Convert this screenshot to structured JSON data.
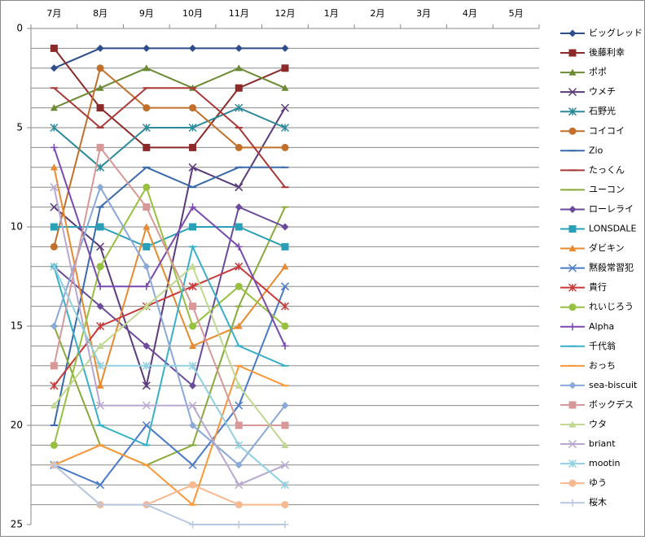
{
  "chart_data": {
    "type": "line",
    "categories": [
      "7月",
      "8月",
      "9月",
      "10月",
      "11月",
      "12月",
      "1月",
      "2月",
      "3月",
      "4月",
      "5月"
    ],
    "ylim": [
      0,
      25
    ],
    "yticks": [
      0,
      5,
      10,
      15,
      20,
      25
    ],
    "y_reversed": true,
    "minor_grid": [
      1,
      2,
      3,
      4,
      5,
      6,
      7,
      8,
      9,
      10,
      11,
      12,
      13,
      14,
      15,
      16,
      17,
      18,
      19,
      20,
      21,
      22,
      23,
      24
    ],
    "legend": "right",
    "series": [
      {
        "name": "ビッグレッド",
        "color": "#2d4e8a",
        "marker": "diamond",
        "values": [
          2,
          1,
          1,
          1,
          1,
          1,
          null,
          null,
          null,
          null,
          null
        ]
      },
      {
        "name": "後藤利幸",
        "color": "#8c2a2a",
        "marker": "square",
        "values": [
          1,
          4,
          6,
          6,
          3,
          2,
          null,
          null,
          null,
          null,
          null
        ]
      },
      {
        "name": "ポポ",
        "color": "#6b8a33",
        "marker": "triangle",
        "values": [
          4,
          3,
          2,
          3,
          2,
          3,
          null,
          null,
          null,
          null,
          null
        ]
      },
      {
        "name": "ウメチ",
        "color": "#5a3a7a",
        "marker": "x",
        "values": [
          9,
          11,
          18,
          7,
          8,
          4,
          null,
          null,
          null,
          null,
          null
        ]
      },
      {
        "name": "石野光",
        "color": "#2a8a9a",
        "marker": "star",
        "values": [
          5,
          7,
          5,
          5,
          4,
          5,
          null,
          null,
          null,
          null,
          null
        ]
      },
      {
        "name": "コイコイ",
        "color": "#c0702a",
        "marker": "circle",
        "values": [
          11,
          2,
          4,
          4,
          6,
          6,
          null,
          null,
          null,
          null,
          null
        ]
      },
      {
        "name": "Zio",
        "color": "#3a6aaa",
        "marker": "dash",
        "values": [
          20,
          9,
          7,
          8,
          7,
          7,
          null,
          null,
          null,
          null,
          null
        ]
      },
      {
        "name": "たっくん",
        "color": "#aa3a3a",
        "marker": "dash",
        "values": [
          3,
          5,
          3,
          3,
          5,
          8,
          null,
          null,
          null,
          null,
          null
        ]
      },
      {
        "name": "ユーコン",
        "color": "#88aa3a",
        "marker": "dash",
        "values": [
          15,
          21,
          22,
          21,
          14,
          9,
          null,
          null,
          null,
          null,
          null
        ]
      },
      {
        "name": "ローレライ",
        "color": "#6a4a9a",
        "marker": "diamond",
        "values": [
          12,
          14,
          16,
          18,
          9,
          10,
          null,
          null,
          null,
          null,
          null
        ]
      },
      {
        "name": "LONSDALE",
        "color": "#2aa0b8",
        "marker": "square",
        "values": [
          10,
          10,
          11,
          10,
          10,
          11,
          null,
          null,
          null,
          null,
          null
        ]
      },
      {
        "name": "ダビキン",
        "color": "#e88a30",
        "marker": "triangle",
        "values": [
          7,
          18,
          10,
          16,
          15,
          12,
          null,
          null,
          null,
          null,
          null
        ]
      },
      {
        "name": "黙殺常習犯",
        "color": "#4a7ac8",
        "marker": "x",
        "values": [
          22,
          23,
          20,
          22,
          19,
          13,
          null,
          null,
          null,
          null,
          null
        ]
      },
      {
        "name": "貴行",
        "color": "#c83a3a",
        "marker": "star",
        "values": [
          18,
          15,
          14,
          13,
          12,
          14,
          null,
          null,
          null,
          null,
          null
        ]
      },
      {
        "name": "れいじろう",
        "color": "#98c040",
        "marker": "circle",
        "values": [
          21,
          12,
          8,
          15,
          13,
          15,
          null,
          null,
          null,
          null,
          null
        ]
      },
      {
        "name": "Alpha",
        "color": "#7a4ab0",
        "marker": "plus",
        "values": [
          6,
          13,
          13,
          9,
          11,
          16,
          null,
          null,
          null,
          null,
          null
        ]
      },
      {
        "name": "千代翁",
        "color": "#38b0c8",
        "marker": "dash",
        "values": [
          12,
          20,
          21,
          11,
          16,
          17,
          null,
          null,
          null,
          null,
          null
        ]
      },
      {
        "name": "おっち",
        "color": "#f89838",
        "marker": "dash",
        "values": [
          22,
          21,
          22,
          24,
          17,
          18,
          null,
          null,
          null,
          null,
          null
        ]
      },
      {
        "name": "sea-biscuit",
        "color": "#8aa8d8",
        "marker": "diamond",
        "values": [
          15,
          8,
          12,
          20,
          22,
          19,
          null,
          null,
          null,
          null,
          null
        ]
      },
      {
        "name": "ボックデス",
        "color": "#d89898",
        "marker": "square",
        "values": [
          17,
          6,
          9,
          14,
          20,
          20,
          null,
          null,
          null,
          null,
          null
        ]
      },
      {
        "name": "ウタ",
        "color": "#c0d890",
        "marker": "triangle",
        "values": [
          19,
          16,
          14,
          12,
          18,
          21,
          null,
          null,
          null,
          null,
          null
        ]
      },
      {
        "name": "briant",
        "color": "#b8a8d0",
        "marker": "x",
        "values": [
          8,
          19,
          19,
          19,
          23,
          22,
          null,
          null,
          null,
          null,
          null
        ]
      },
      {
        "name": "mootin",
        "color": "#90d0e0",
        "marker": "star",
        "values": [
          12,
          17,
          17,
          17,
          21,
          23,
          null,
          null,
          null,
          null,
          null
        ]
      },
      {
        "name": "ゆう",
        "color": "#f8b890",
        "marker": "circle",
        "values": [
          22,
          24,
          24,
          23,
          24,
          24,
          null,
          null,
          null,
          null,
          null
        ]
      },
      {
        "name": "桜木",
        "color": "#b8c8e0",
        "marker": "plus",
        "values": [
          22,
          24,
          24,
          25,
          25,
          25,
          null,
          null,
          null,
          null,
          null
        ]
      }
    ]
  }
}
